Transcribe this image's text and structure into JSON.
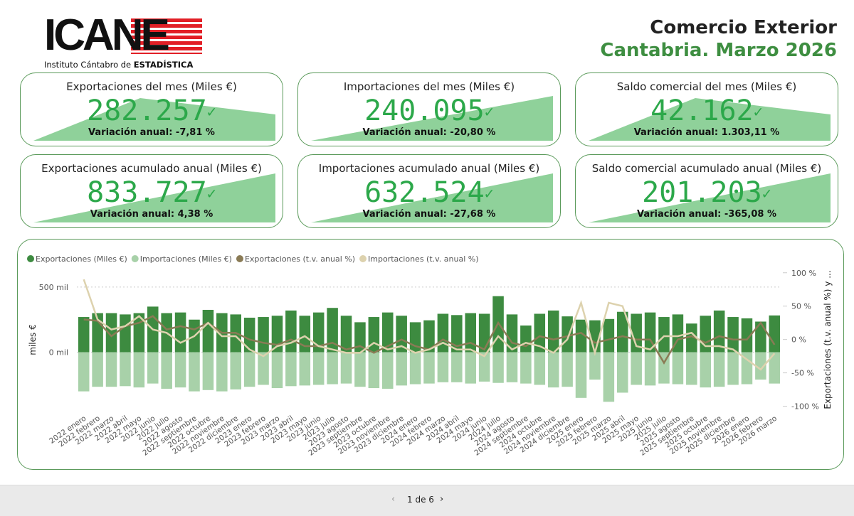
{
  "header": {
    "logo": "ICANE",
    "logo_subtitle": "Instituto Cántabro de",
    "logo_subtitle_bold": "ESTADÍSTICA",
    "title": "Comercio Exterior",
    "subtitle": "Cantabria. Marzo 2026"
  },
  "cards": [
    {
      "title": "Exportaciones del mes (Miles €)",
      "value": "282.257",
      "variation": "Variación anual: -7,81 %"
    },
    {
      "title": "Importaciones del mes (Miles €)",
      "value": "240.095",
      "variation": "Variación anual: -20,80 %"
    },
    {
      "title": "Saldo comercial del mes (Miles €)",
      "value": "42.162",
      "variation": "Variación anual: 1.303,11 %"
    },
    {
      "title": "Exportaciones acumulado anual (Miles €)",
      "value": "833.727",
      "variation": "Variación anual: 4,38 %"
    },
    {
      "title": "Importaciones acumulado anual (Miles €)",
      "value": "632.524",
      "variation": "Variación anual: -27,68 %"
    },
    {
      "title": "Saldo comercial acumulado anual (Miles €)",
      "value": "201.203",
      "variation": "Variación anual: -365,08 %"
    }
  ],
  "chart_data": {
    "type": "combo",
    "ylabel": "miles €",
    "y2label": "Exportaciones (t.v. anual %) y ...",
    "categories": [
      "2022 enero",
      "2022 febrero",
      "2022 marzo",
      "2022 abril",
      "2022 mayo",
      "2022 junio",
      "2022 julio",
      "2022 agosto",
      "2022 septiembre",
      "2022 octubre",
      "2022 noviembre",
      "2022 diciembre",
      "2023 enero",
      "2023 febrero",
      "2023 marzo",
      "2023 abril",
      "2023 mayo",
      "2023 junio",
      "2023 julio",
      "2023 agosto",
      "2023 septiembre",
      "2023 octubre",
      "2023 noviembre",
      "2023 diciembre",
      "2024 enero",
      "2024 febrero",
      "2024 marzo",
      "2024 abril",
      "2024 mayo",
      "2024 junio",
      "2024 julio",
      "2024 agosto",
      "2024 septiembre",
      "2024 octubre",
      "2024 noviembre",
      "2024 diciembre",
      "2025 enero",
      "2025 febrero",
      "2025 marzo",
      "2025 abril",
      "2025 mayo",
      "2025 junio",
      "2025 julio",
      "2025 agosto",
      "2025 septiembre",
      "2025 octubre",
      "2025 noviembre",
      "2025 diciembre",
      "2026 enero",
      "2026 febrero",
      "2026 marzo"
    ],
    "series": [
      {
        "name": "Exportaciones (Miles €)",
        "color": "#3d8b40",
        "kind": "bar",
        "values": [
          270000,
          300000,
          300000,
          290000,
          300000,
          350000,
          300000,
          305000,
          250000,
          325000,
          300000,
          290000,
          265000,
          270000,
          280000,
          320000,
          280000,
          305000,
          340000,
          280000,
          230000,
          270000,
          305000,
          280000,
          230000,
          245000,
          295000,
          285000,
          300000,
          295000,
          430000,
          290000,
          205000,
          295000,
          320000,
          275000,
          250000,
          245000,
          255000,
          310000,
          295000,
          305000,
          270000,
          290000,
          220000,
          280000,
          320000,
          270000,
          260000,
          235000,
          282257
        ]
      },
      {
        "name": "Importaciones (Miles €)",
        "color": "#a8d1a9",
        "kind": "bar",
        "values": [
          -300000,
          -265000,
          -265000,
          -260000,
          -270000,
          -240000,
          -280000,
          -270000,
          -300000,
          -290000,
          -300000,
          -285000,
          -265000,
          -250000,
          -275000,
          -260000,
          -255000,
          -250000,
          -245000,
          -240000,
          -265000,
          -275000,
          -280000,
          -255000,
          -245000,
          -240000,
          -230000,
          -230000,
          -240000,
          -225000,
          -235000,
          -230000,
          -240000,
          -250000,
          -270000,
          -265000,
          -350000,
          -210000,
          -380000,
          -310000,
          -250000,
          -255000,
          -240000,
          -245000,
          -250000,
          -270000,
          -265000,
          -250000,
          -245000,
          -210000,
          -240095
        ]
      },
      {
        "name": "Exportaciones (t.v. anual %)",
        "color": "#8a7b55",
        "kind": "line",
        "axis": "y2",
        "values": [
          30,
          28,
          5,
          20,
          25,
          35,
          15,
          20,
          15,
          25,
          10,
          10,
          0,
          -5,
          -8,
          0,
          -10,
          -10,
          -5,
          -15,
          -10,
          -20,
          -10,
          0,
          -10,
          -15,
          0,
          -10,
          -5,
          -15,
          25,
          -5,
          -10,
          5,
          0,
          5,
          10,
          -5,
          0,
          5,
          0,
          0,
          -35,
          0,
          5,
          -5,
          5,
          0,
          0,
          25,
          -7.81
        ]
      },
      {
        "name": "Importaciones (t.v. anual %)",
        "color": "#ddd2ae",
        "kind": "line",
        "axis": "y2",
        "values": [
          90,
          30,
          15,
          20,
          35,
          15,
          10,
          -5,
          5,
          25,
          5,
          5,
          -15,
          -25,
          -10,
          -5,
          5,
          -10,
          -15,
          -20,
          -20,
          -5,
          -15,
          -10,
          -20,
          -15,
          -5,
          -15,
          -15,
          -25,
          5,
          -15,
          -5,
          -10,
          -20,
          0,
          55,
          -20,
          55,
          50,
          -10,
          -15,
          5,
          5,
          10,
          -10,
          -10,
          -15,
          -30,
          -45,
          -20.8
        ]
      }
    ],
    "ylim": [
      -460000,
      630000
    ],
    "yticks": [
      {
        "value": 0,
        "label": "0 mil"
      },
      {
        "value": 500000,
        "label": "500 mil"
      }
    ],
    "y2lim": [
      -109,
      104
    ],
    "y2ticks": [
      {
        "value": 100,
        "label": "100 %"
      },
      {
        "value": 50,
        "label": "50 %"
      },
      {
        "value": 0,
        "label": "0 %"
      },
      {
        "value": -50,
        "label": "-50 %"
      },
      {
        "value": -100,
        "label": "-100 %"
      }
    ],
    "grid": true
  },
  "footer": {
    "page": "1 de 6"
  }
}
